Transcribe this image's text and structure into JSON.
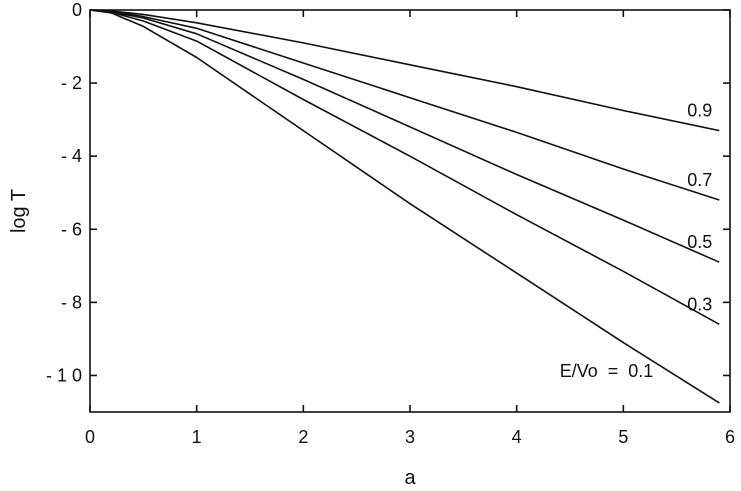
{
  "chart_data": {
    "type": "line",
    "title": "",
    "xlabel": "a",
    "ylabel": "log T",
    "xlim": [
      0,
      6
    ],
    "ylim": [
      -11,
      0
    ],
    "xticks": [
      0,
      1,
      2,
      3,
      4,
      5,
      6
    ],
    "xtick_labels": [
      "0",
      "1",
      "2",
      "3",
      "4",
      "5",
      "6"
    ],
    "yticks": [
      0,
      -2,
      -4,
      -6,
      -8,
      -10
    ],
    "ytick_labels": [
      "0",
      "- 2",
      "- 4",
      "- 6",
      "- 8",
      "- 1 0"
    ],
    "grid": false,
    "legend": "none",
    "series": [
      {
        "name": "0.9",
        "label": "0.9",
        "x": [
          0,
          0.2,
          0.5,
          1,
          2,
          3,
          4,
          5,
          5.9
        ],
        "y": [
          0,
          -0.03,
          -0.12,
          -0.35,
          -0.9,
          -1.5,
          -2.1,
          -2.75,
          -3.3
        ]
      },
      {
        "name": "0.7",
        "label": "0.7",
        "x": [
          0,
          0.2,
          0.5,
          1,
          2,
          3,
          4,
          5,
          5.9
        ],
        "y": [
          0,
          -0.04,
          -0.18,
          -0.5,
          -1.45,
          -2.4,
          -3.35,
          -4.35,
          -5.2
        ]
      },
      {
        "name": "0.5",
        "label": "0.5",
        "x": [
          0,
          0.2,
          0.5,
          1,
          2,
          3,
          4,
          5,
          5.9
        ],
        "y": [
          0,
          -0.05,
          -0.22,
          -0.65,
          -1.9,
          -3.2,
          -4.5,
          -5.75,
          -6.9
        ]
      },
      {
        "name": "0.3",
        "label": "0.3",
        "x": [
          0,
          0.2,
          0.5,
          1,
          2,
          3,
          4,
          5,
          5.9
        ],
        "y": [
          0,
          -0.06,
          -0.3,
          -0.85,
          -2.45,
          -4.0,
          -5.6,
          -7.15,
          -8.6
        ]
      },
      {
        "name": "0.1",
        "label": "E/Vo  =  0.1",
        "x": [
          0,
          0.2,
          0.5,
          1,
          2,
          3,
          4,
          5,
          5.9
        ],
        "y": [
          0,
          -0.08,
          -0.45,
          -1.3,
          -3.3,
          -5.3,
          -7.2,
          -9.1,
          -10.75
        ]
      }
    ]
  }
}
